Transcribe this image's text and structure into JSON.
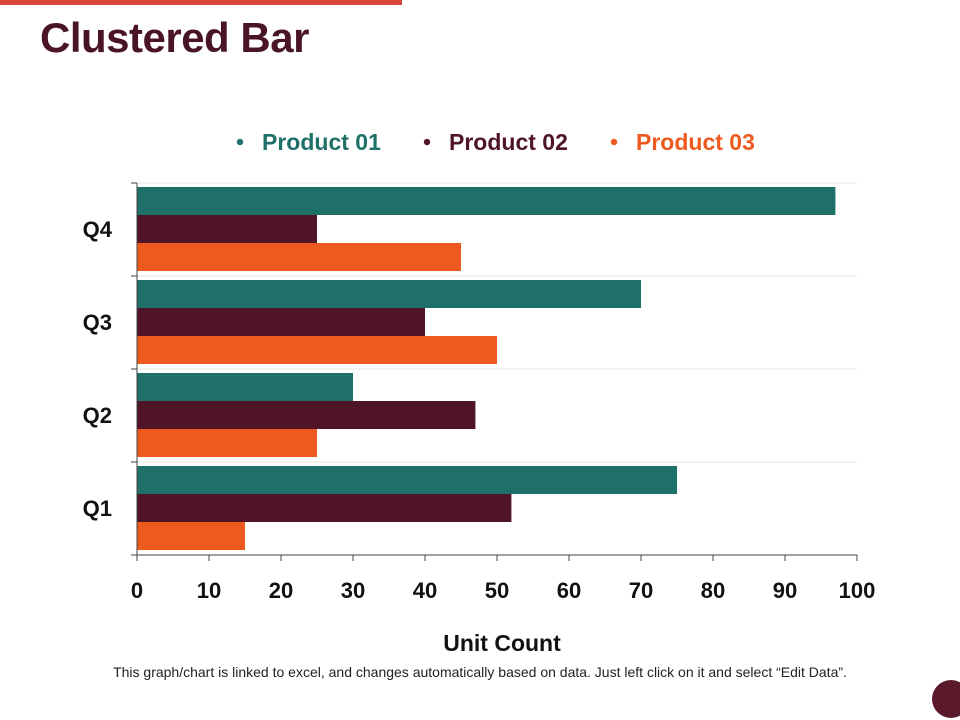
{
  "slide": {
    "title": "Clustered Bar",
    "footnote": "This graph/chart is linked to excel, and changes automatically based on data. Just left click on it and select “Edit Data”."
  },
  "colors": {
    "accent": "#d9453b",
    "title": "#4a1428",
    "corner": "#5a1a2c",
    "axis": "#444444",
    "grid": "#e4e4e4"
  },
  "chart_data": {
    "type": "bar",
    "orientation": "horizontal",
    "categories": [
      "Q1",
      "Q2",
      "Q3",
      "Q4"
    ],
    "series": [
      {
        "name": "Product 01",
        "color": "#1e7068",
        "values": [
          75,
          30,
          70,
          97
        ]
      },
      {
        "name": "Product 02",
        "color": "#501428",
        "values": [
          52,
          47,
          40,
          25
        ]
      },
      {
        "name": "Product 03",
        "color": "#ee5a1e",
        "values": [
          15,
          25,
          50,
          45
        ]
      }
    ],
    "title": "",
    "xlabel": "Unit Count",
    "ylabel": "",
    "xlim": [
      0,
      100
    ],
    "xticks": [
      0,
      10,
      20,
      30,
      40,
      50,
      60,
      70,
      80,
      90,
      100
    ],
    "grid": "horizontal category separators",
    "legend": "top-center"
  }
}
